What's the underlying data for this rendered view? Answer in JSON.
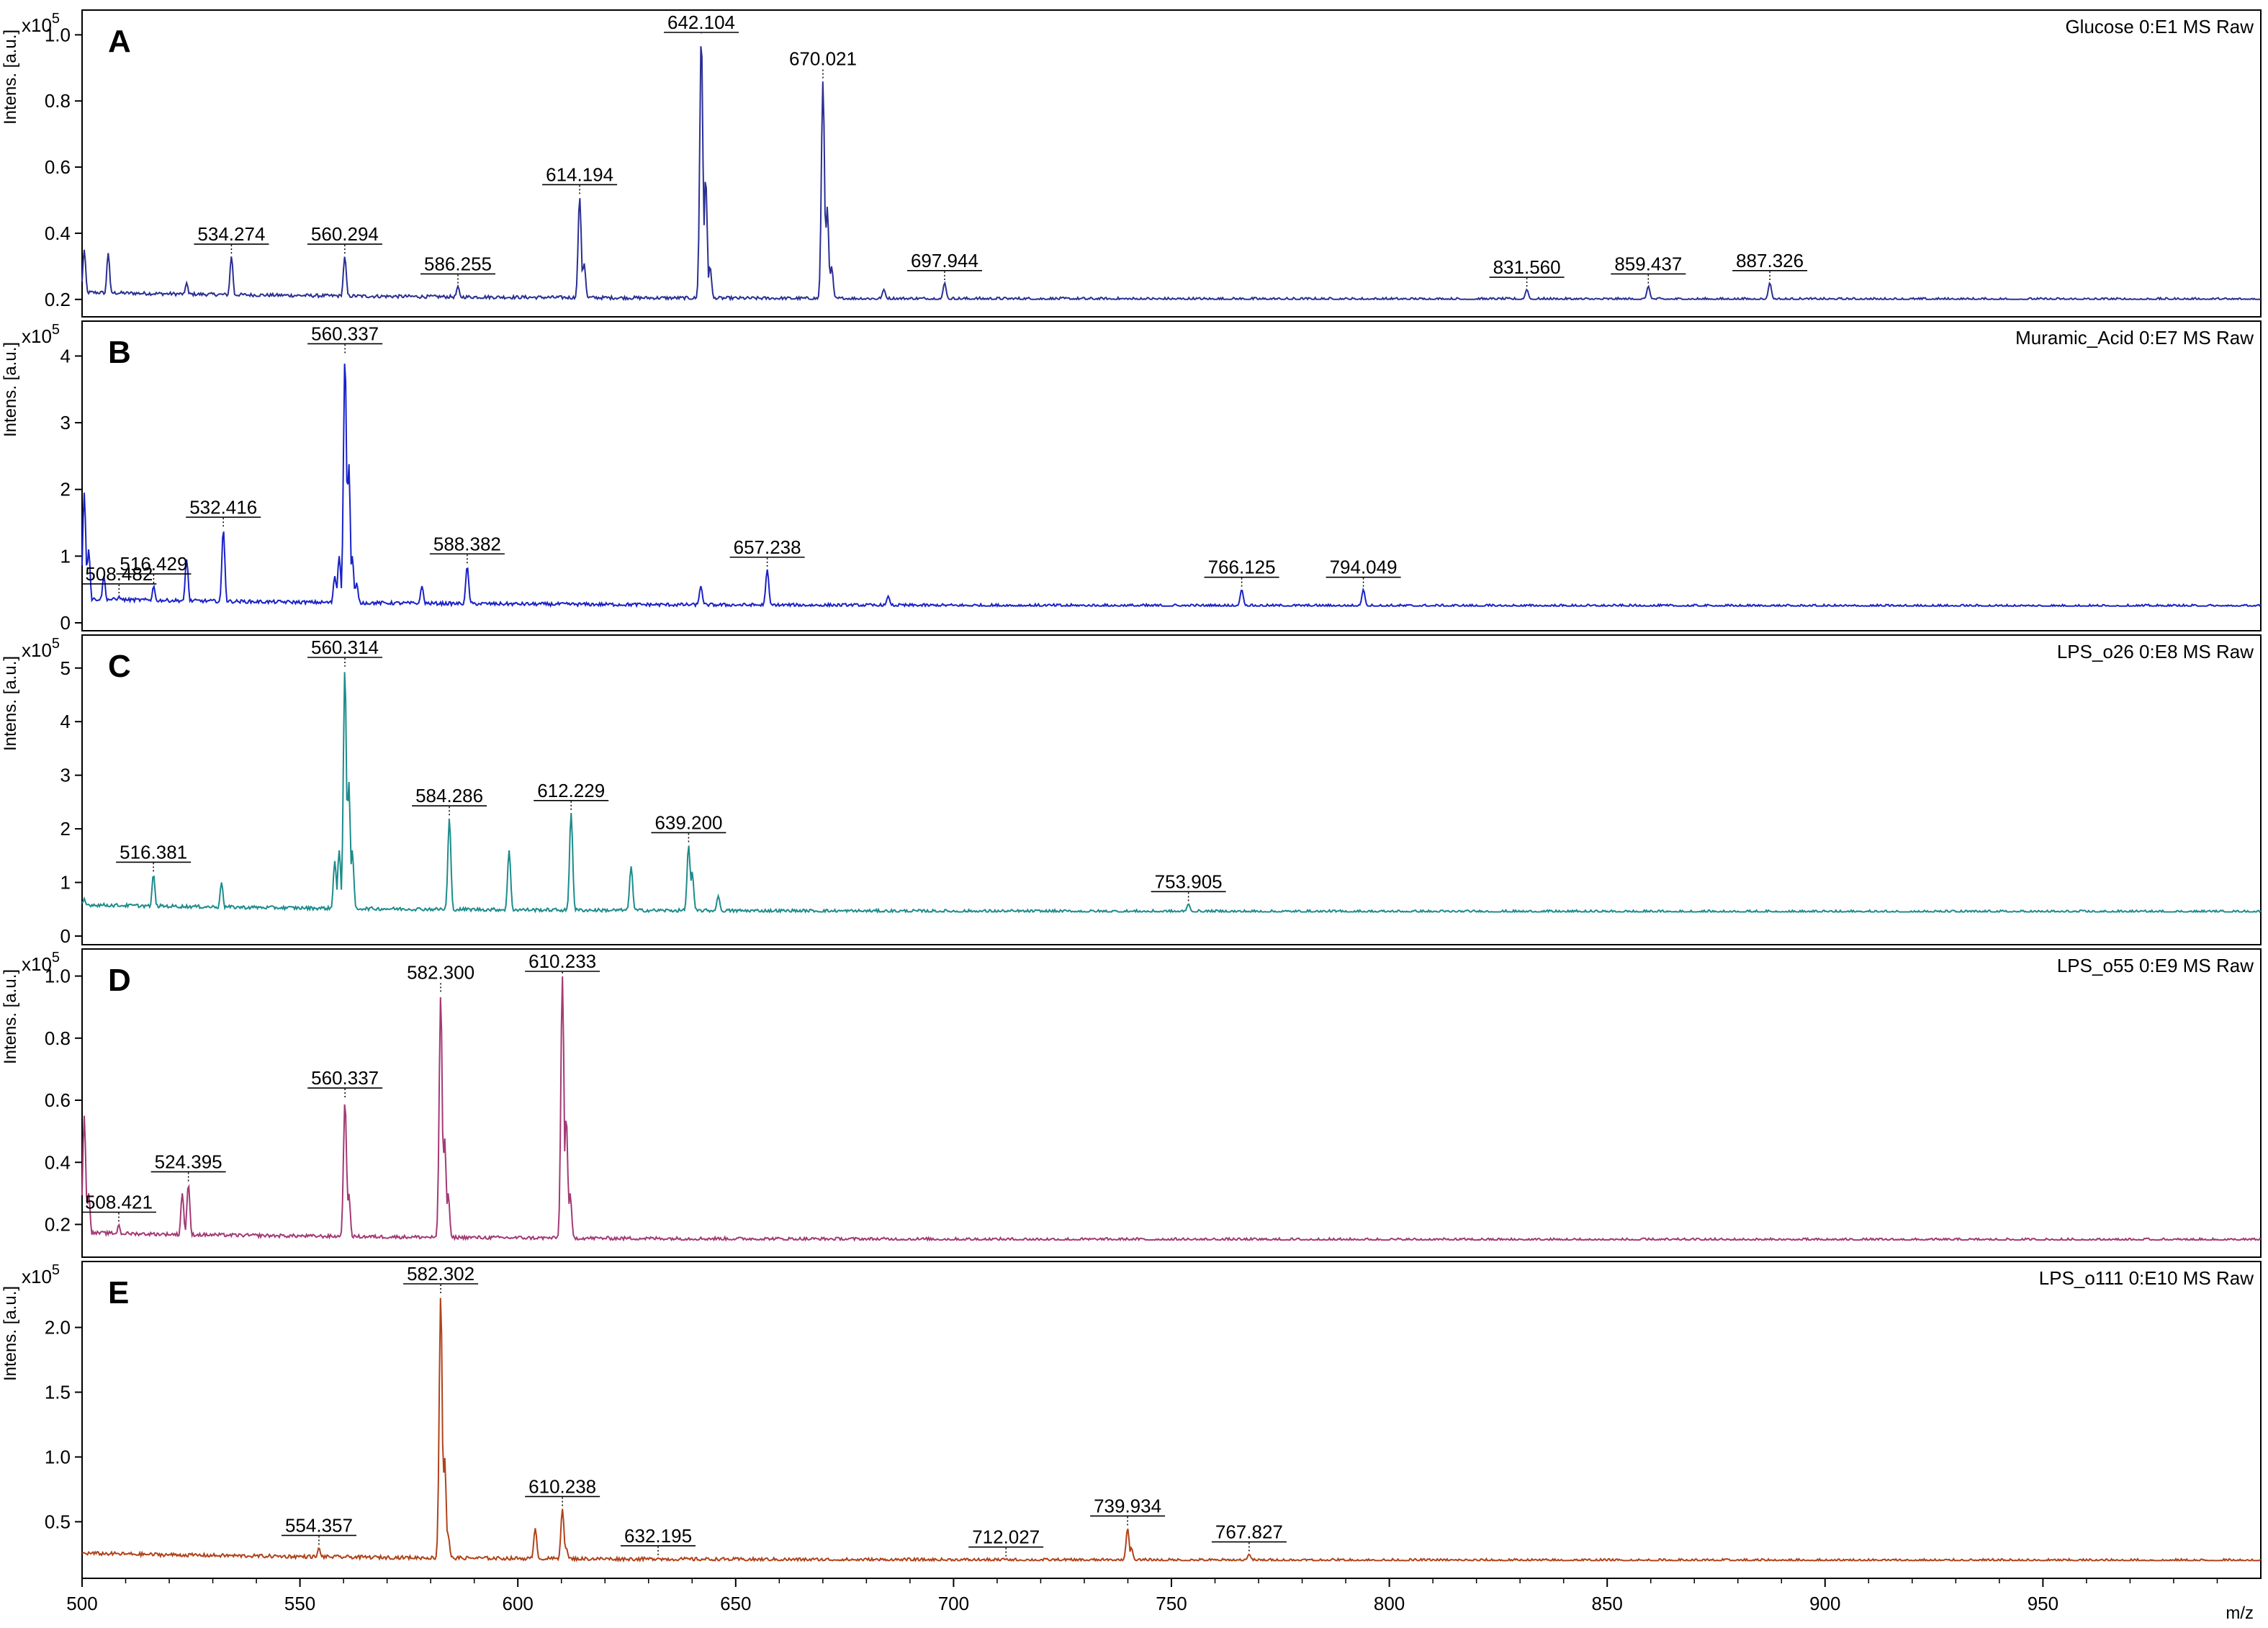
{
  "figure": {
    "xlabel": "m/z",
    "x_ticks": [
      500,
      550,
      600,
      650,
      700,
      750,
      800,
      850,
      900,
      950
    ],
    "ylabel": "Intens. [a.u.]",
    "multiplier_base": "x10",
    "multiplier_exp": "5"
  },
  "chart_data": [
    {
      "type": "line",
      "panel_letter": "A",
      "title": "Glucose 0:E1 MS Raw",
      "color": "#2b2f93",
      "xlim": [
        500,
        1000
      ],
      "ylim": [
        0.18,
        1.04
      ],
      "y_ticks": [
        0.2,
        0.4,
        0.6,
        0.8,
        1.0
      ],
      "y_tick_labels": [
        "0.2",
        "0.4",
        "0.6",
        "0.8",
        "1.0"
      ],
      "baseline": 0.2,
      "series": [
        {
          "peaks": [
            [
              500.5,
              0.35
            ],
            [
              506,
              0.34
            ],
            [
              524,
              0.25
            ],
            [
              534.274,
              0.33
            ],
            [
              560.294,
              0.33
            ],
            [
              586.255,
              0.24
            ],
            [
              614.194,
              0.51
            ],
            [
              615.2,
              0.31
            ],
            [
              642.104,
              1.0
            ],
            [
              643.1,
              0.57
            ],
            [
              644.1,
              0.3
            ],
            [
              670.021,
              0.86
            ],
            [
              671.0,
              0.48
            ],
            [
              672.0,
              0.3
            ],
            [
              684,
              0.23
            ],
            [
              697.944,
              0.25
            ],
            [
              831.56,
              0.23
            ],
            [
              859.437,
              0.24
            ],
            [
              887.326,
              0.25
            ]
          ]
        }
      ],
      "annotations": [
        {
          "label": "534.274",
          "x": 534.274,
          "y": 0.33,
          "underlined": true
        },
        {
          "label": "560.294",
          "x": 560.294,
          "y": 0.33,
          "underlined": true
        },
        {
          "label": "586.255",
          "x": 586.255,
          "y": 0.24,
          "underlined": true
        },
        {
          "label": "614.194",
          "x": 614.194,
          "y": 0.51,
          "underlined": true
        },
        {
          "label": "642.104",
          "x": 642.104,
          "y": 1.0,
          "underlined": true
        },
        {
          "label": "670.021",
          "x": 670.021,
          "y": 0.86,
          "underlined": false
        },
        {
          "label": "697.944",
          "x": 697.944,
          "y": 0.25,
          "underlined": true
        },
        {
          "label": "831.560",
          "x": 831.56,
          "y": 0.23,
          "underlined": true
        },
        {
          "label": "859.437",
          "x": 859.437,
          "y": 0.24,
          "underlined": true
        },
        {
          "label": "887.326",
          "x": 887.326,
          "y": 0.25,
          "underlined": true
        }
      ]
    },
    {
      "type": "line",
      "panel_letter": "B",
      "title": "Muramic_Acid 0:E7 MS Raw",
      "color": "#1a22c8",
      "xlim": [
        500,
        1000
      ],
      "ylim": [
        0,
        4.35
      ],
      "y_ticks": [
        0,
        1,
        2,
        3,
        4
      ],
      "y_tick_labels": [
        "0",
        "1",
        "2",
        "3",
        "4"
      ],
      "baseline": 0.25,
      "series": [
        {
          "peaks": [
            [
              500.5,
              1.95
            ],
            [
              501.5,
              1.1
            ],
            [
              505,
              0.7
            ],
            [
              508.482,
              0.4
            ],
            [
              516.429,
              0.55
            ],
            [
              524,
              0.95
            ],
            [
              532.416,
              1.4
            ],
            [
              558,
              0.7
            ],
            [
              559,
              1.0
            ],
            [
              560.337,
              4.0
            ],
            [
              561.2,
              2.4
            ],
            [
              562,
              1.0
            ],
            [
              563,
              0.6
            ],
            [
              578,
              0.55
            ],
            [
              588.382,
              0.85
            ],
            [
              642,
              0.55
            ],
            [
              657.238,
              0.8
            ],
            [
              685,
              0.4
            ],
            [
              766.125,
              0.5
            ],
            [
              794.049,
              0.5
            ]
          ]
        }
      ],
      "annotations": [
        {
          "label": "508.482",
          "x": 508.482,
          "y": 0.4,
          "underlined": true
        },
        {
          "label": "516.429",
          "x": 516.429,
          "y": 0.55,
          "underlined": true
        },
        {
          "label": "532.416",
          "x": 532.416,
          "y": 1.4,
          "underlined": true
        },
        {
          "label": "560.337",
          "x": 560.337,
          "y": 4.0,
          "underlined": true
        },
        {
          "label": "588.382",
          "x": 588.382,
          "y": 0.85,
          "underlined": true
        },
        {
          "label": "657.238",
          "x": 657.238,
          "y": 0.8,
          "underlined": true
        },
        {
          "label": "766.125",
          "x": 766.125,
          "y": 0.5,
          "underlined": true
        },
        {
          "label": "794.049",
          "x": 794.049,
          "y": 0.5,
          "underlined": true
        }
      ]
    },
    {
      "type": "line",
      "panel_letter": "C",
      "title": "LPS_o26 0:E8 MS Raw",
      "color": "#1d8c8c",
      "xlim": [
        500,
        1000
      ],
      "ylim": [
        0,
        5.4
      ],
      "y_ticks": [
        0,
        1,
        2,
        3,
        4,
        5
      ],
      "y_tick_labels": [
        "0",
        "1",
        "2",
        "3",
        "4",
        "5"
      ],
      "baseline": 0.45,
      "series": [
        {
          "peaks": [
            [
              500.5,
              0.7
            ],
            [
              516.381,
              1.15
            ],
            [
              532,
              1.0
            ],
            [
              558,
              1.4
            ],
            [
              559,
              1.6
            ],
            [
              560.314,
              5.0
            ],
            [
              561.2,
              2.9
            ],
            [
              562,
              1.6
            ],
            [
              584.286,
              2.2
            ],
            [
              598,
              1.6
            ],
            [
              612.229,
              2.3
            ],
            [
              626,
              1.3
            ],
            [
              639.2,
              1.7
            ],
            [
              640,
              1.2
            ],
            [
              646,
              0.75
            ],
            [
              753.905,
              0.6
            ]
          ]
        }
      ],
      "annotations": [
        {
          "label": "516.381",
          "x": 516.381,
          "y": 1.15,
          "underlined": true
        },
        {
          "label": "560.314",
          "x": 560.314,
          "y": 5.0,
          "underlined": true
        },
        {
          "label": "584.286",
          "x": 584.286,
          "y": 2.2,
          "underlined": true
        },
        {
          "label": "612.229",
          "x": 612.229,
          "y": 2.3,
          "underlined": true
        },
        {
          "label": "639.200",
          "x": 639.2,
          "y": 1.7,
          "underlined": true
        },
        {
          "label": "753.905",
          "x": 753.905,
          "y": 0.6,
          "underlined": true
        }
      ]
    },
    {
      "type": "line",
      "panel_letter": "D",
      "title": "LPS_o55 0:E9 MS Raw",
      "color": "#a33a75",
      "xlim": [
        500,
        1000
      ],
      "ylim": [
        0.12,
        1.05
      ],
      "y_ticks": [
        0.2,
        0.4,
        0.6,
        0.8,
        1.0
      ],
      "y_tick_labels": [
        "0.2",
        "0.4",
        "0.6",
        "0.8",
        "1.0"
      ],
      "baseline": 0.15,
      "series": [
        {
          "peaks": [
            [
              500.5,
              0.55
            ],
            [
              501.5,
              0.3
            ],
            [
              508.421,
              0.2
            ],
            [
              523,
              0.3
            ],
            [
              524.395,
              0.33
            ],
            [
              560.337,
              0.6
            ],
            [
              561.2,
              0.3
            ],
            [
              582.3,
              0.94
            ],
            [
              583.2,
              0.48
            ],
            [
              584,
              0.3
            ],
            [
              610.233,
              1.0
            ],
            [
              611.1,
              0.55
            ],
            [
              612,
              0.3
            ]
          ]
        }
      ],
      "annotations": [
        {
          "label": "508.421",
          "x": 508.421,
          "y": 0.2,
          "underlined": true
        },
        {
          "label": "524.395",
          "x": 524.395,
          "y": 0.33,
          "underlined": true
        },
        {
          "label": "560.337",
          "x": 560.337,
          "y": 0.6,
          "underlined": true
        },
        {
          "label": "582.300",
          "x": 582.3,
          "y": 0.94,
          "underlined": false
        },
        {
          "label": "610.233",
          "x": 610.233,
          "y": 1.0,
          "underlined": true
        }
      ]
    },
    {
      "type": "line",
      "panel_letter": "E",
      "title": "LPS_o111 0:E10 MS Raw",
      "color": "#b0431a",
      "xlim": [
        500,
        1000
      ],
      "ylim": [
        0.13,
        2.42
      ],
      "y_ticks": [
        0.5,
        1.0,
        1.5,
        2.0
      ],
      "y_tick_labels": [
        "0.5",
        "1.0",
        "1.5",
        "2.0"
      ],
      "baseline": 0.2,
      "series": [
        {
          "peaks": [
            [
              554.357,
              0.3
            ],
            [
              582.302,
              2.25
            ],
            [
              583.2,
              1.0
            ],
            [
              584,
              0.4
            ],
            [
              604,
              0.45
            ],
            [
              610.238,
              0.6
            ],
            [
              611.1,
              0.3
            ],
            [
              632.195,
              0.22
            ],
            [
              712.027,
              0.21
            ],
            [
              739.934,
              0.45
            ],
            [
              740.8,
              0.3
            ],
            [
              767.827,
              0.25
            ]
          ]
        }
      ],
      "annotations": [
        {
          "label": "554.357",
          "x": 554.357,
          "y": 0.3,
          "underlined": true
        },
        {
          "label": "582.302",
          "x": 582.302,
          "y": 2.25,
          "underlined": true
        },
        {
          "label": "610.238",
          "x": 610.238,
          "y": 0.6,
          "underlined": true
        },
        {
          "label": "632.195",
          "x": 632.195,
          "y": 0.22,
          "underlined": true
        },
        {
          "label": "712.027",
          "x": 712.027,
          "y": 0.21,
          "underlined": true
        },
        {
          "label": "739.934",
          "x": 739.934,
          "y": 0.45,
          "underlined": true
        },
        {
          "label": "767.827",
          "x": 767.827,
          "y": 0.25,
          "underlined": true
        }
      ]
    }
  ]
}
